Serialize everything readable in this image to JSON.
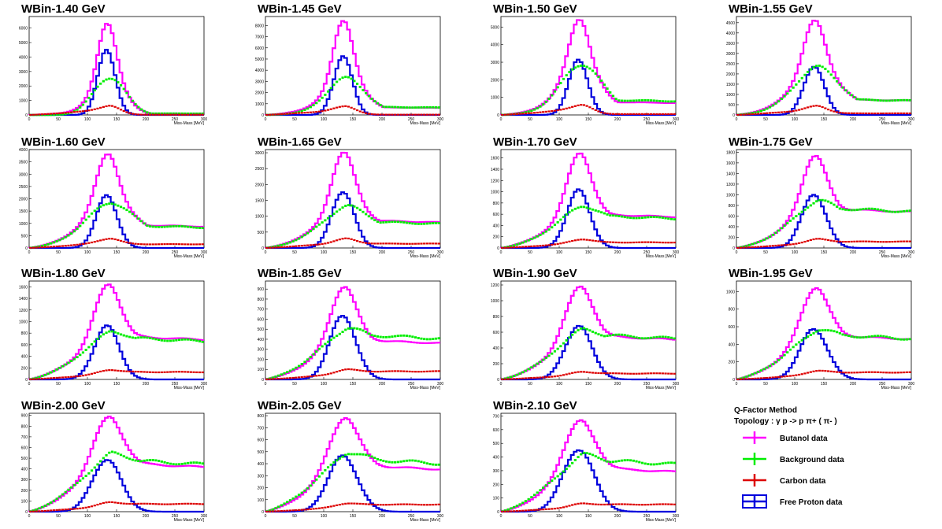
{
  "chart_data": {
    "type": "line",
    "xlabel": "Miss-Mass [MeV]",
    "x_ticks": [
      0,
      50,
      100,
      150,
      200,
      250,
      300
    ],
    "xlim": [
      0,
      300
    ],
    "colors": {
      "butanol": "#ff00ff",
      "background": "#00ee00",
      "carbon": "#dd0000",
      "free_proton": "#0000dd"
    },
    "series_order": [
      "butanol",
      "background",
      "carbon",
      "free_proton"
    ],
    "panels": [
      {
        "title": "WBin-1.40 GeV",
        "ymax": 6800,
        "ticks": [
          0,
          1000,
          2000,
          3000,
          4000,
          5000,
          6000
        ],
        "peaks": {
          "butanol": 6300,
          "background": 2500,
          "carbon": 650,
          "free_proton": 4500
        },
        "bg": {
          "r": 1,
          "w": 18
        },
        "tail": {
          "b": 0.02,
          "bg": 0.04,
          "c": 0.02
        }
      },
      {
        "title": "WBin-1.45 GeV",
        "ymax": 8800,
        "ticks": [
          0,
          1000,
          2000,
          3000,
          4000,
          5000,
          6000,
          7000,
          8000
        ],
        "peaks": {
          "butanol": 8400,
          "background": 3400,
          "carbon": 800,
          "free_proton": 5300
        },
        "bg": {
          "r": 0.85,
          "w": 22
        },
        "tail": {
          "b": 0.03,
          "bg": 0.22,
          "c": 0.03
        }
      },
      {
        "title": "WBin-1.50 GeV",
        "ymax": 5600,
        "ticks": [
          0,
          1000,
          2000,
          3000,
          4000,
          5000
        ],
        "peaks": {
          "butanol": 5400,
          "background": 2800,
          "carbon": 600,
          "free_proton": 3100
        },
        "bg": {
          "r": 0.85,
          "w": 25
        },
        "tail": {
          "b": 0.06,
          "bg": 0.3,
          "c": 0.08
        }
      },
      {
        "title": "WBin-1.55 GeV",
        "ymax": 4800,
        "ticks": [
          0,
          500,
          1000,
          1500,
          2000,
          2500,
          3000,
          3500,
          4000,
          4500
        ],
        "peaks": {
          "butanol": 4600,
          "background": 2400,
          "carbon": 450,
          "free_proton": 2400
        },
        "bg": {
          "r": 0.75,
          "w": 28
        },
        "tail": {
          "b": 0.17,
          "bg": 0.33,
          "c": 0.17
        }
      },
      {
        "title": "WBin-1.60 GeV",
        "ymax": 4000,
        "ticks": [
          0,
          500,
          1000,
          1500,
          2000,
          2500,
          3000,
          3500,
          4000
        ],
        "peaks": {
          "butanol": 3800,
          "background": 1800,
          "carbon": 400,
          "free_proton": 2100
        },
        "bg": {
          "r": 0.6,
          "w": 30
        },
        "tail": {
          "b": 0.5,
          "bg": 0.5,
          "c": 0.38
        }
      },
      {
        "title": "WBin-1.65 GeV",
        "ymax": 3100,
        "ticks": [
          0,
          500,
          1000,
          1500,
          2000,
          2500,
          3000
        ],
        "peaks": {
          "butanol": 3000,
          "background": 1350,
          "carbon": 300,
          "free_proton": 1800
        },
        "bg": {
          "r": 0.5,
          "w": 30
        },
        "tail": {
          "b": 0.64,
          "bg": 0.64,
          "c": 0.45
        }
      },
      {
        "title": "WBin-1.70 GeV",
        "ymax": 1750,
        "ticks": [
          0,
          200,
          400,
          600,
          800,
          1000,
          1200,
          1400,
          1600
        ],
        "peaks": {
          "butanol": 1680,
          "background": 730,
          "carbon": 160,
          "free_proton": 1020
        },
        "bg": {
          "r": 0.4,
          "w": 30
        },
        "tail": {
          "b": 0.78,
          "bg": 0.78,
          "c": 0.62
        }
      },
      {
        "title": "WBin-1.75 GeV",
        "ymax": 1850,
        "ticks": [
          0,
          200,
          400,
          600,
          800,
          1000,
          1200,
          1400,
          1600,
          1800
        ],
        "peaks": {
          "butanol": 1730,
          "background": 900,
          "carbon": 170,
          "free_proton": 1020
        },
        "bg": {
          "r": 0.4,
          "w": 30
        },
        "tail": {
          "b": 0.85,
          "bg": 0.85,
          "c": 0.7
        }
      },
      {
        "title": "WBin-1.80 GeV",
        "ymax": 1700,
        "ticks": [
          0,
          200,
          400,
          600,
          800,
          1000,
          1200,
          1400,
          1600
        ],
        "peaks": {
          "butanol": 1640,
          "background": 830,
          "carbon": 170,
          "free_proton": 920
        },
        "bg": {
          "r": 0.3,
          "w": 32
        },
        "tail": {
          "b": 0.88,
          "bg": 0.88,
          "c": 0.75
        }
      },
      {
        "title": "WBin-1.85 GeV",
        "ymax": 980,
        "ticks": [
          0,
          100,
          200,
          300,
          400,
          500,
          600,
          700,
          800,
          900
        ],
        "peaks": {
          "butanol": 920,
          "background": 510,
          "carbon": 100,
          "free_proton": 640
        },
        "bg": {
          "r": 0.3,
          "w": 32
        },
        "tail": {
          "b": 0.88,
          "bg": 0.88,
          "c": 0.8
        }
      },
      {
        "title": "WBin-1.90 GeV",
        "ymax": 1250,
        "ticks": [
          0,
          200,
          400,
          600,
          800,
          1000,
          1200
        ],
        "peaks": {
          "butanol": 1180,
          "background": 650,
          "carbon": 100,
          "free_proton": 680
        },
        "bg": {
          "r": 0.3,
          "w": 32
        },
        "tail": {
          "b": 0.9,
          "bg": 0.9,
          "c": 0.75
        }
      },
      {
        "title": "WBin-1.95 GeV",
        "ymax": 1120,
        "ticks": [
          0,
          200,
          400,
          600,
          800,
          1000
        ],
        "peaks": {
          "butanol": 1040,
          "background": 560,
          "carbon": 100,
          "free_proton": 570
        },
        "bg": {
          "r": 0.25,
          "w": 32
        },
        "tail": {
          "b": 0.9,
          "bg": 0.9,
          "c": 0.8
        }
      },
      {
        "title": "WBin-2.00 GeV",
        "ymax": 920,
        "ticks": [
          0,
          100,
          200,
          300,
          400,
          500,
          600,
          700,
          800,
          900
        ],
        "peaks": {
          "butanol": 890,
          "background": 560,
          "carbon": 90,
          "free_proton": 490
        },
        "bg": {
          "r": 0.2,
          "w": 34
        },
        "tail": {
          "b": 0.9,
          "bg": 0.9,
          "c": 0.8
        }
      },
      {
        "title": "WBin-2.05 GeV",
        "ymax": 820,
        "ticks": [
          0,
          100,
          200,
          300,
          400,
          500,
          600,
          700,
          800
        ],
        "peaks": {
          "butanol": 780,
          "background": 480,
          "carbon": 70,
          "free_proton": 460
        },
        "bg": {
          "r": 0.2,
          "w": 34
        },
        "tail": {
          "b": 0.9,
          "bg": 0.9,
          "c": 0.85
        }
      },
      {
        "title": "WBin-2.10 GeV",
        "ymax": 720,
        "ticks": [
          0,
          100,
          200,
          300,
          400,
          500,
          600,
          700
        ],
        "peaks": {
          "butanol": 670,
          "background": 430,
          "carbon": 60,
          "free_proton": 460
        },
        "bg": {
          "r": 0.2,
          "w": 34
        },
        "tail": {
          "b": 0.92,
          "bg": 0.92,
          "c": 0.88
        }
      }
    ]
  },
  "legend": {
    "title": "Q-Factor Method",
    "topology": "Topology :  γ p -> p  π+ ( π- )",
    "entries": [
      {
        "label": "Butanol data",
        "series": "butanol"
      },
      {
        "label": "Background data",
        "series": "background"
      },
      {
        "label": "Carbon data",
        "series": "carbon"
      },
      {
        "label": "Free Proton data",
        "series": "free_proton"
      }
    ]
  }
}
